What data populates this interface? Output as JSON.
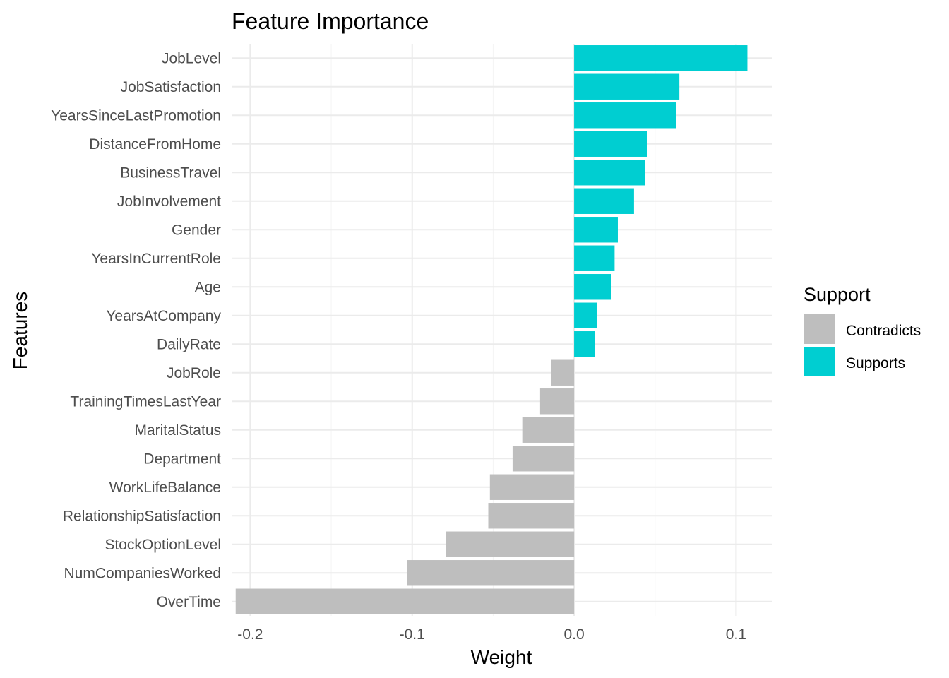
{
  "chart_data": {
    "type": "bar",
    "orientation": "horizontal",
    "title": "Feature Importance",
    "xlabel": "Weight",
    "ylabel": "Features",
    "xlim": [
      -0.2115,
      0.1225
    ],
    "x_ticks": [
      -0.2,
      -0.1,
      0.0,
      0.1
    ],
    "x_tick_labels": [
      "-0.2",
      "-0.1",
      "0.0",
      "0.1"
    ],
    "grid": true,
    "legend": {
      "title": "Support",
      "position": "right",
      "entries": [
        {
          "label": "Contradicts",
          "color": "#bebebe"
        },
        {
          "label": "Supports",
          "color": "#00ced1"
        }
      ]
    },
    "categories": [
      "JobLevel",
      "JobSatisfaction",
      "YearsSinceLastPromotion",
      "DistanceFromHome",
      "BusinessTravel",
      "JobInvolvement",
      "Gender",
      "YearsInCurrentRole",
      "Age",
      "YearsAtCompany",
      "DailyRate",
      "JobRole",
      "TrainingTimesLastYear",
      "MaritalStatus",
      "Department",
      "WorkLifeBalance",
      "RelationshipSatisfaction",
      "StockOptionLevel",
      "NumCompaniesWorked",
      "OverTime"
    ],
    "values": [
      0.107,
      0.065,
      0.063,
      0.045,
      0.044,
      0.037,
      0.027,
      0.025,
      0.023,
      0.014,
      0.013,
      -0.014,
      -0.021,
      -0.032,
      -0.038,
      -0.052,
      -0.053,
      -0.079,
      -0.103,
      -0.209
    ],
    "support": [
      "Supports",
      "Supports",
      "Supports",
      "Supports",
      "Supports",
      "Supports",
      "Supports",
      "Supports",
      "Supports",
      "Supports",
      "Supports",
      "Contradicts",
      "Contradicts",
      "Contradicts",
      "Contradicts",
      "Contradicts",
      "Contradicts",
      "Contradicts",
      "Contradicts",
      "Contradicts"
    ]
  }
}
